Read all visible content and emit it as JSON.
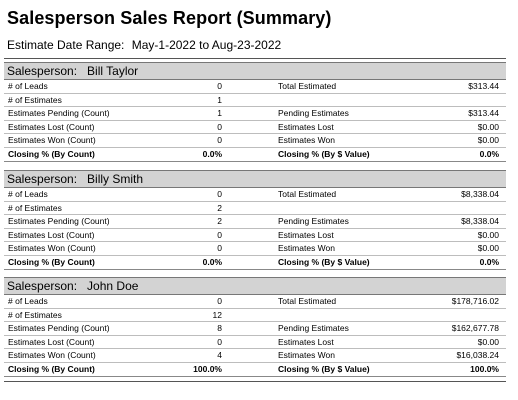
{
  "report": {
    "title": "Salesperson Sales Report (Summary)",
    "date_range_label": "Estimate Date Range:",
    "date_range_value": "May-1-2022 to Aug-23-2022"
  },
  "salesperson_label": "Salesperson:",
  "sections": [
    {
      "name": "Bill Taylor",
      "rows": [
        {
          "label": "# of Leads",
          "count": "0",
          "right_label": "Total Estimated",
          "right_value": "$313.44"
        },
        {
          "label": "# of Estimates",
          "count": "1",
          "right_label": "",
          "right_value": ""
        },
        {
          "label": "Estimates Pending (Count)",
          "count": "1",
          "right_label": "Pending Estimates",
          "right_value": "$313.44"
        },
        {
          "label": "Estimates Lost (Count)",
          "count": "0",
          "right_label": "Estimates Lost",
          "right_value": "$0.00"
        },
        {
          "label": "Estimates Won (Count)",
          "count": "0",
          "right_label": "Estimates Won",
          "right_value": "$0.00"
        },
        {
          "label": "Closing % (By Count)",
          "count": "0.0%",
          "right_label": "Closing % (By $ Value)",
          "right_value": "0.0%"
        }
      ]
    },
    {
      "name": "Billy Smith",
      "rows": [
        {
          "label": "# of Leads",
          "count": "0",
          "right_label": "Total Estimated",
          "right_value": "$8,338.04"
        },
        {
          "label": "# of Estimates",
          "count": "2",
          "right_label": "",
          "right_value": ""
        },
        {
          "label": "Estimates Pending (Count)",
          "count": "2",
          "right_label": "Pending Estimates",
          "right_value": "$8,338.04"
        },
        {
          "label": "Estimates Lost (Count)",
          "count": "0",
          "right_label": "Estimates Lost",
          "right_value": "$0.00"
        },
        {
          "label": "Estimates Won (Count)",
          "count": "0",
          "right_label": "Estimates Won",
          "right_value": "$0.00"
        },
        {
          "label": "Closing % (By Count)",
          "count": "0.0%",
          "right_label": "Closing % (By $ Value)",
          "right_value": "0.0%"
        }
      ]
    },
    {
      "name": "John Doe",
      "rows": [
        {
          "label": "# of Leads",
          "count": "0",
          "right_label": "Total Estimated",
          "right_value": "$178,716.02"
        },
        {
          "label": "# of Estimates",
          "count": "12",
          "right_label": "",
          "right_value": ""
        },
        {
          "label": "Estimates Pending (Count)",
          "count": "8",
          "right_label": "Pending Estimates",
          "right_value": "$162,677.78"
        },
        {
          "label": "Estimates Lost (Count)",
          "count": "0",
          "right_label": "Estimates Lost",
          "right_value": "$0.00"
        },
        {
          "label": "Estimates Won (Count)",
          "count": "4",
          "right_label": "Estimates Won",
          "right_value": "$16,038.24"
        },
        {
          "label": "Closing % (By Count)",
          "count": "100.0%",
          "right_label": "Closing % (By $ Value)",
          "right_value": "100.0%"
        }
      ]
    }
  ]
}
